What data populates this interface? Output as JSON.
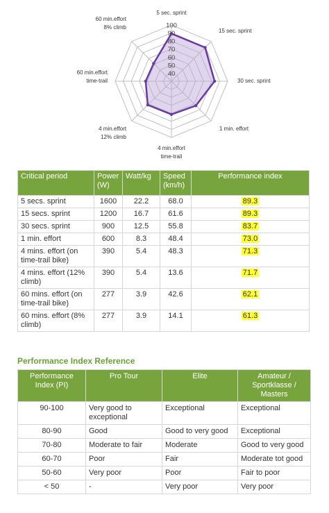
{
  "chart_data": {
    "type": "radar",
    "axes": [
      {
        "label_lines": [
          "5 sec. sprint"
        ],
        "value": 89.3
      },
      {
        "label_lines": [
          "15 sec. sprint"
        ],
        "value": 89.3
      },
      {
        "label_lines": [
          "30 sec. sprint"
        ],
        "value": 83.7
      },
      {
        "label_lines": [
          "1 min. effort"
        ],
        "value": 73.0
      },
      {
        "label_lines": [
          "4 min.effort",
          "time-trail"
        ],
        "value": 71.3
      },
      {
        "label_lines": [
          "4 min.effort",
          "12% climb"
        ],
        "value": 71.7
      },
      {
        "label_lines": [
          "60 min.effort",
          "time-trail"
        ],
        "value": 62.1
      },
      {
        "label_lines": [
          "60 min.effort",
          "8% climb"
        ],
        "value": 61.3
      }
    ],
    "ticks": [
      "40",
      "50",
      "60",
      "70",
      "80",
      "90",
      "100"
    ],
    "range": [
      30,
      100
    ],
    "colors": {
      "line": "#6b3aa0",
      "fill": "#b9a3d8",
      "grid": "#bfbfbf"
    }
  },
  "performance_table": {
    "headers": [
      "Critical period",
      "Power (W)",
      "Watt/kg",
      "Speed (km/h)",
      "Performance index"
    ],
    "rows": [
      {
        "period": "5 secs. sprint",
        "power": "1600",
        "wkg": "22.2",
        "speed": "68.0",
        "pi": "89.3"
      },
      {
        "period": "15 secs. sprint",
        "power": "1200",
        "wkg": "16.7",
        "speed": "61.6",
        "pi": "89.3"
      },
      {
        "period": "30 secs. sprint",
        "power": "900",
        "wkg": "12.5",
        "speed": "55.8",
        "pi": "83.7"
      },
      {
        "period": "1 min. effort",
        "power": "600",
        "wkg": "8.3",
        "speed": "48.4",
        "pi": "73.0"
      },
      {
        "period": "4 mins. effort (on time-trail bike)",
        "power": "390",
        "wkg": "5.4",
        "speed": "48.3",
        "pi": "71.3"
      },
      {
        "period": "4 mins. effort (12% climb)",
        "power": "390",
        "wkg": "5.4",
        "speed": "13.6",
        "pi": "71.7"
      },
      {
        "period": "60 mins. effort (on time-trail bike)",
        "power": "277",
        "wkg": "3.9",
        "speed": "42.6",
        "pi": "62.1"
      },
      {
        "period": "60 mins. effort (8% climb)",
        "power": "277",
        "wkg": "3.9",
        "speed": "14.1",
        "pi": "61.3"
      }
    ],
    "highlight_color": "#ffff33"
  },
  "reference": {
    "title": "Performance Index Reference",
    "headers": [
      "Performance Index (PI)",
      "Pro Tour",
      "Elite",
      "Amateur / Sportklasse / Masters"
    ],
    "rows": [
      {
        "range": "90-100",
        "pro": "Very good to exceptional",
        "elite": "Exceptional",
        "amateur": "Exceptional"
      },
      {
        "range": "80-90",
        "pro": "Good",
        "elite": "Good to very good",
        "amateur": "Exceptional"
      },
      {
        "range": "70-80",
        "pro": "Moderate to fair",
        "elite": "Moderate",
        "amateur": "Good to very good"
      },
      {
        "range": "60-70",
        "pro": "Poor",
        "elite": "Fair",
        "amateur": "Moderate tot good"
      },
      {
        "range": "50-60",
        "pro": "Very poor",
        "elite": "Poor",
        "amateur": "Fair to poor"
      },
      {
        "range": "< 50",
        "pro": "-",
        "elite": "Very poor",
        "amateur": "Very poor"
      }
    ]
  },
  "colors": {
    "header_green": "#78a43d",
    "title_green": "#6aa134"
  }
}
